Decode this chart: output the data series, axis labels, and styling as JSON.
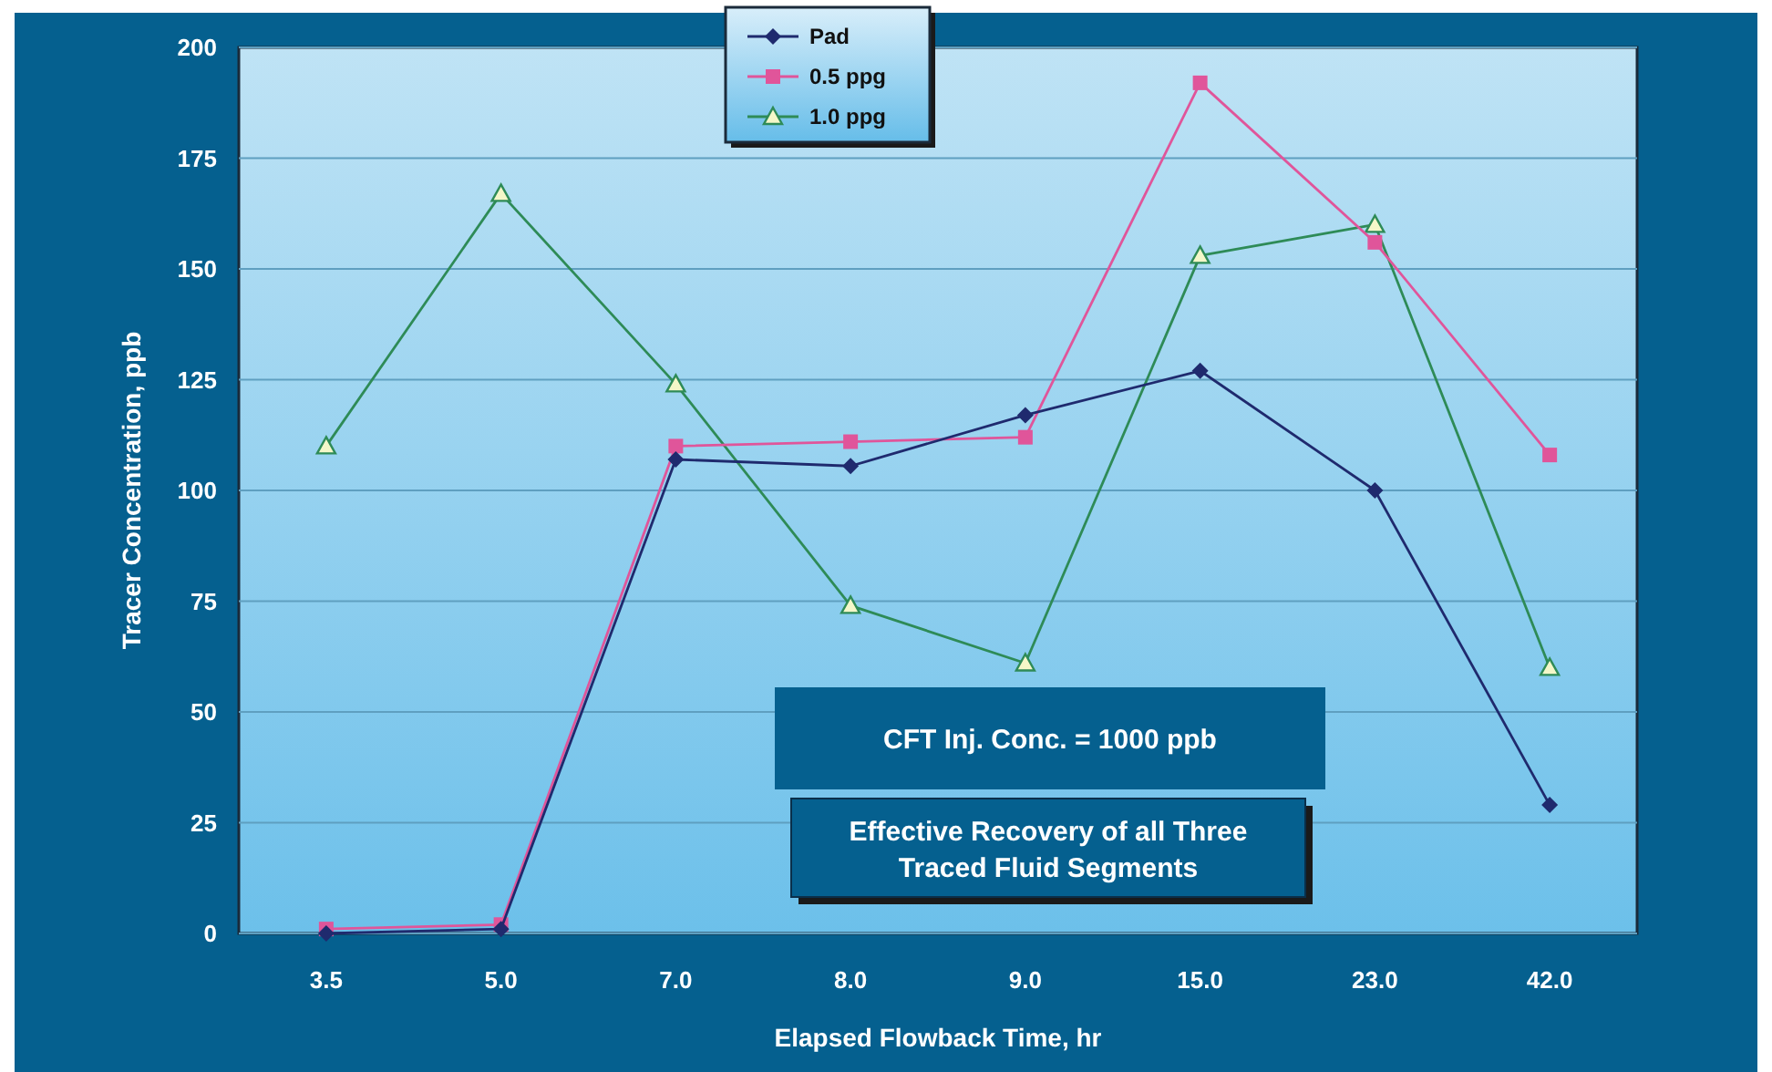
{
  "chart_data": {
    "type": "line",
    "xlabel": "Elapsed Flowback Time, hr",
    "ylabel": "Tracer Concentration, ppb",
    "categories": [
      "3.5",
      "5.0",
      "7.0",
      "8.0",
      "9.0",
      "15.0",
      "23.0",
      "42.0"
    ],
    "series": [
      {
        "name": "Pad",
        "color": "#1f2a6e",
        "marker": "diamond",
        "values": [
          0,
          1,
          107,
          105.5,
          117,
          127,
          100,
          29
        ]
      },
      {
        "name": "0.5 ppg",
        "color": "#e0559a",
        "marker": "square",
        "values": [
          1,
          2,
          110,
          111,
          112,
          192,
          156,
          108
        ]
      },
      {
        "name": "1.0 ppg",
        "color": "#2e8b57",
        "marker": "triangle",
        "values": [
          110,
          167,
          124,
          74,
          61,
          153,
          160,
          60
        ]
      }
    ],
    "ylim": [
      0,
      200
    ],
    "yticks": [
      0,
      25,
      50,
      75,
      100,
      125,
      150,
      175,
      200
    ],
    "grid": "y",
    "legend": "top",
    "line_style": "solid",
    "annotations": [
      "CFT Inj. Conc. = 1000 ppb",
      "Effective Recovery of all Three Traced Fluid Segments"
    ]
  }
}
